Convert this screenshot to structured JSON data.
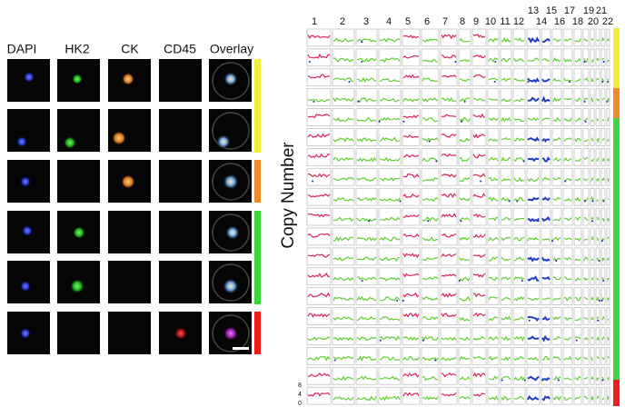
{
  "panel_a": {
    "headers": [
      "DAPI",
      "HK2",
      "CK",
      "CD45",
      "Overlay"
    ]
  },
  "panel_b": {
    "ylabel": "Copy Number",
    "chromosomes": [
      "1",
      "2",
      "3",
      "4",
      "5",
      "6",
      "7",
      "8",
      "9",
      "10",
      "11",
      "12",
      "13",
      "14",
      "15",
      "16",
      "17",
      "18",
      "19",
      "20",
      "21",
      "22"
    ],
    "yticks": [
      "8",
      "4",
      "0"
    ]
  }
}
